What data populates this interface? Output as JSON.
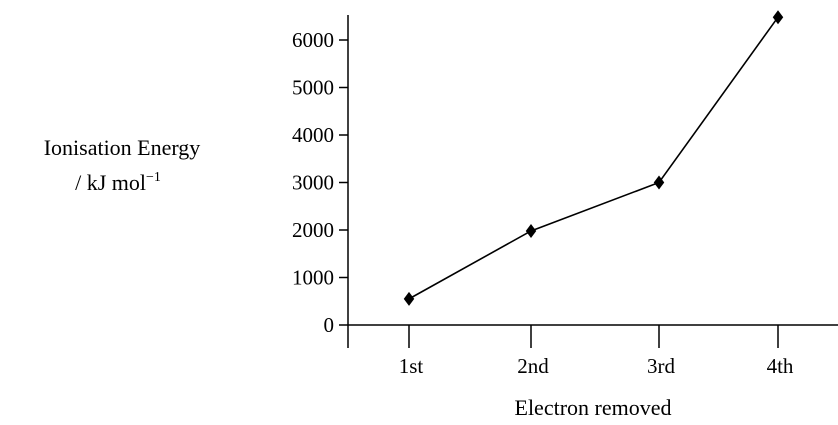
{
  "chart_data": {
    "type": "line",
    "title": "",
    "categories": [
      "1st",
      "2nd",
      "3rd",
      "4th"
    ],
    "series": [
      {
        "values": [
          550,
          1980,
          3000,
          6480
        ]
      }
    ],
    "xlabel": "Electron removed",
    "ylabel": {
      "line1": "Ionisation Energy",
      "line2_base": "/ kJ mol",
      "line2_sup": "−1"
    },
    "yticks": [
      "0",
      "1000",
      "2000",
      "3000",
      "4000",
      "5000",
      "6000"
    ],
    "ylim": [
      0,
      6700
    ],
    "grid": false,
    "legend": "none",
    "marker": "diamond",
    "color": "#000000"
  }
}
